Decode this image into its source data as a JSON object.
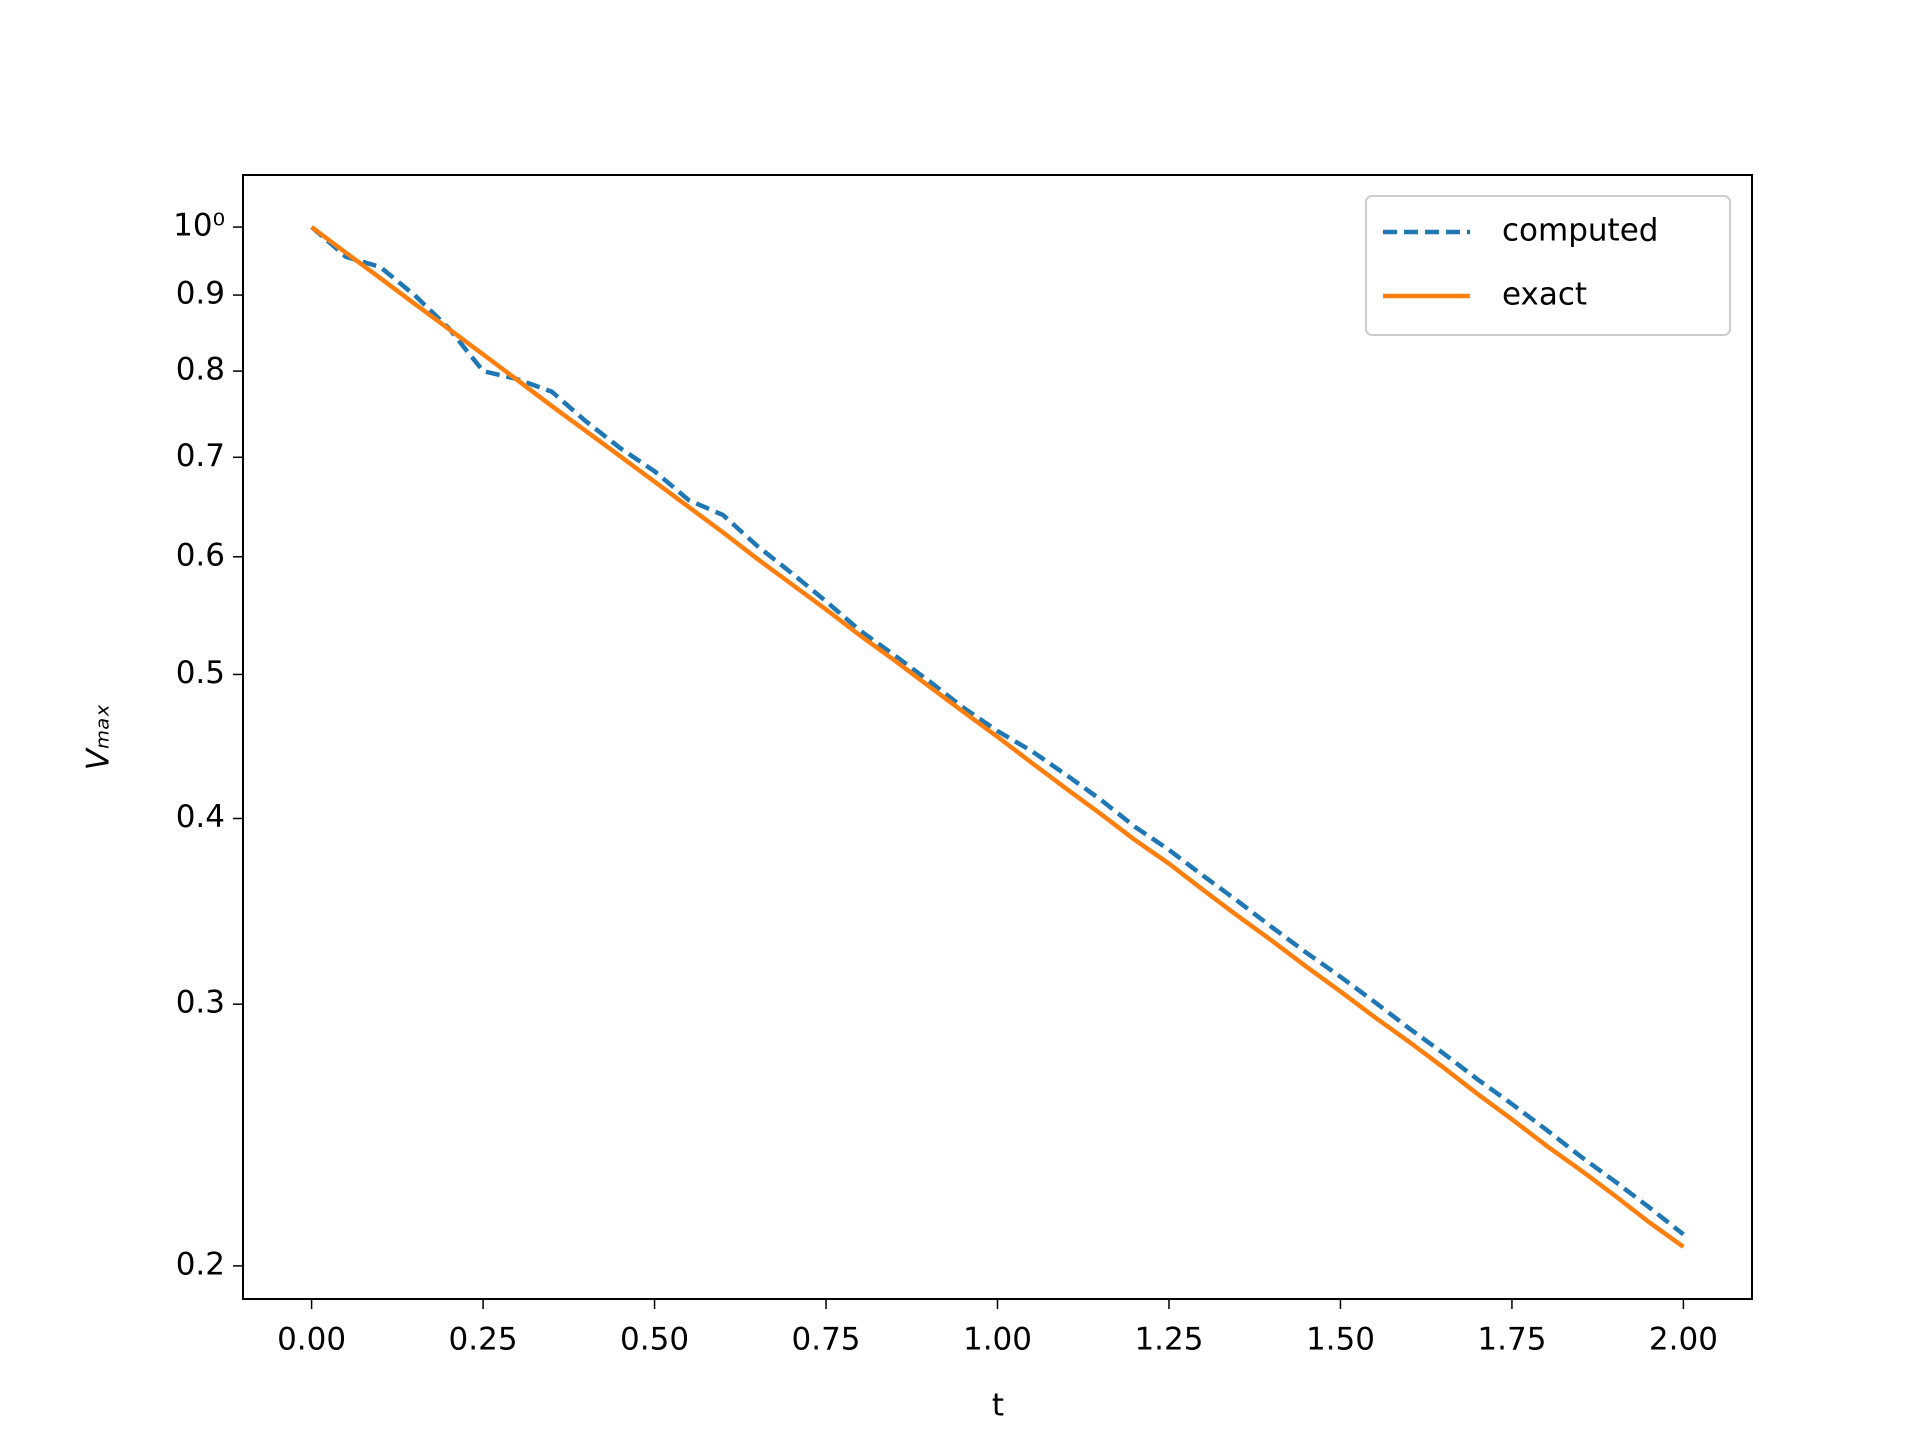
{
  "chart_data": {
    "type": "line",
    "xlabel": "t",
    "ylabel": "Vₘₐₓ",
    "x": [
      0,
      0.05,
      0.1,
      0.15,
      0.2,
      0.25,
      0.3,
      0.35,
      0.4,
      0.45,
      0.5,
      0.55,
      0.6,
      0.65,
      0.7,
      0.75,
      0.8,
      0.85,
      0.9,
      0.95,
      1.0,
      1.05,
      1.1,
      1.15,
      1.2,
      1.25,
      1.3,
      1.35,
      1.4,
      1.45,
      1.5,
      1.55,
      1.6,
      1.65,
      1.7,
      1.75,
      1.8,
      1.85,
      1.9,
      1.95,
      2.0
    ],
    "series": [
      {
        "name": "computed",
        "color": "#1f77b4",
        "dash": true,
        "values": [
          1,
          0.955,
          0.94,
          0.9,
          0.855,
          0.8,
          0.79,
          0.775,
          0.74,
          0.71,
          0.685,
          0.655,
          0.64,
          0.61,
          0.585,
          0.56,
          0.535,
          0.515,
          0.495,
          0.475,
          0.458,
          0.444,
          0.428,
          0.412,
          0.395,
          0.381,
          0.366,
          0.352,
          0.338,
          0.325,
          0.313,
          0.301,
          0.289,
          0.278,
          0.267,
          0.257,
          0.247,
          0.237,
          0.228,
          0.219,
          0.21
        ]
      },
      {
        "name": "exact",
        "color": "#ff7f0e",
        "dash": false,
        "values": [
          1,
          0.961,
          0.924,
          0.888,
          0.854,
          0.821,
          0.789,
          0.758,
          0.729,
          0.701,
          0.674,
          0.648,
          0.623,
          0.598,
          0.575,
          0.553,
          0.531,
          0.511,
          0.491,
          0.472,
          0.454,
          0.436,
          0.419,
          0.403,
          0.387,
          0.373,
          0.358,
          0.344,
          0.331,
          0.318,
          0.306,
          0.294,
          0.283,
          0.272,
          0.261,
          0.251,
          0.241,
          0.232,
          0.223,
          0.214,
          0.206
        ]
      }
    ],
    "xlim": [
      -0.1,
      2.1
    ],
    "xticks": [
      {
        "value": 0,
        "label": "0.00"
      },
      {
        "value": 0.25,
        "label": "0.25"
      },
      {
        "value": 0.5,
        "label": "0.50"
      },
      {
        "value": 0.75,
        "label": "0.75"
      },
      {
        "value": 1,
        "label": "1.00"
      },
      {
        "value": 1.25,
        "label": "1.25"
      },
      {
        "value": 1.5,
        "label": "1.50"
      },
      {
        "value": 1.75,
        "label": "1.75"
      },
      {
        "value": 2,
        "label": "2.00"
      }
    ],
    "ylim": [
      0.19,
      1.084
    ],
    "yscale": "log",
    "yticks": [
      {
        "value": 1,
        "label": "10⁰"
      },
      0.9,
      0.8,
      0.7,
      0.6,
      0.5,
      0.4,
      0.3,
      0.2
    ],
    "legend": "upper right"
  }
}
